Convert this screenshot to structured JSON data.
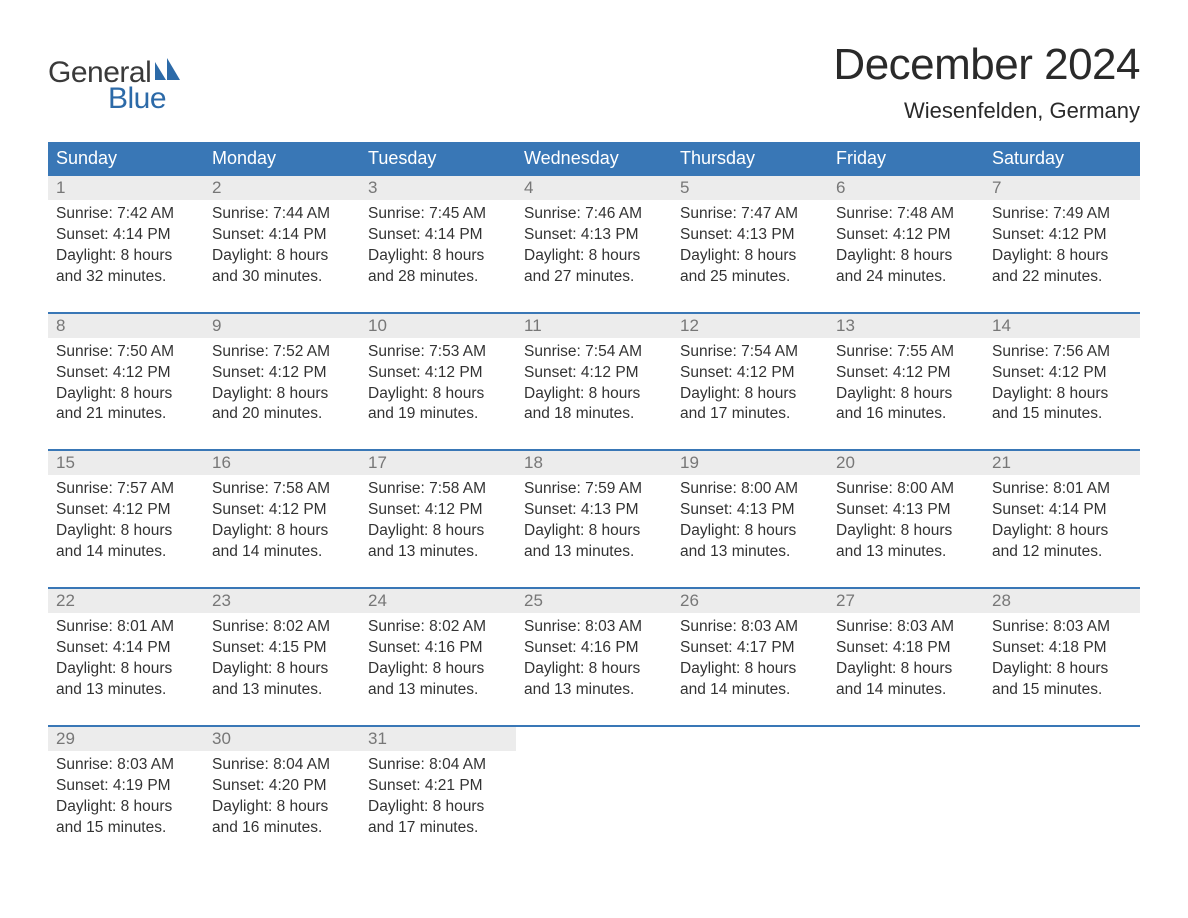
{
  "logo": {
    "primary": "General",
    "secondary": "Blue"
  },
  "title": "December 2024",
  "location": "Wiesenfelden, Germany",
  "colors": {
    "header_bg": "#3977b6",
    "header_text": "#ffffff",
    "day_num_bg": "#ececec",
    "day_num_text": "#777777",
    "text": "#333333",
    "page_bg": "#ffffff",
    "logo_secondary": "#2c6aa8",
    "separator": "#3977b6"
  },
  "layout": {
    "columns": 7,
    "weeks": 5,
    "header_fontsize": 18,
    "month_title_fontsize": 44,
    "location_fontsize": 22,
    "day_num_fontsize": 17,
    "cell_fontsize": 15.5
  },
  "weekdays": [
    "Sunday",
    "Monday",
    "Tuesday",
    "Wednesday",
    "Thursday",
    "Friday",
    "Saturday"
  ],
  "weeks": [
    [
      {
        "num": "1",
        "sunrise": "Sunrise: 7:42 AM",
        "sunset": "Sunset: 4:14 PM",
        "d1": "Daylight: 8 hours",
        "d2": "and 32 minutes."
      },
      {
        "num": "2",
        "sunrise": "Sunrise: 7:44 AM",
        "sunset": "Sunset: 4:14 PM",
        "d1": "Daylight: 8 hours",
        "d2": "and 30 minutes."
      },
      {
        "num": "3",
        "sunrise": "Sunrise: 7:45 AM",
        "sunset": "Sunset: 4:14 PM",
        "d1": "Daylight: 8 hours",
        "d2": "and 28 minutes."
      },
      {
        "num": "4",
        "sunrise": "Sunrise: 7:46 AM",
        "sunset": "Sunset: 4:13 PM",
        "d1": "Daylight: 8 hours",
        "d2": "and 27 minutes."
      },
      {
        "num": "5",
        "sunrise": "Sunrise: 7:47 AM",
        "sunset": "Sunset: 4:13 PM",
        "d1": "Daylight: 8 hours",
        "d2": "and 25 minutes."
      },
      {
        "num": "6",
        "sunrise": "Sunrise: 7:48 AM",
        "sunset": "Sunset: 4:12 PM",
        "d1": "Daylight: 8 hours",
        "d2": "and 24 minutes."
      },
      {
        "num": "7",
        "sunrise": "Sunrise: 7:49 AM",
        "sunset": "Sunset: 4:12 PM",
        "d1": "Daylight: 8 hours",
        "d2": "and 22 minutes."
      }
    ],
    [
      {
        "num": "8",
        "sunrise": "Sunrise: 7:50 AM",
        "sunset": "Sunset: 4:12 PM",
        "d1": "Daylight: 8 hours",
        "d2": "and 21 minutes."
      },
      {
        "num": "9",
        "sunrise": "Sunrise: 7:52 AM",
        "sunset": "Sunset: 4:12 PM",
        "d1": "Daylight: 8 hours",
        "d2": "and 20 minutes."
      },
      {
        "num": "10",
        "sunrise": "Sunrise: 7:53 AM",
        "sunset": "Sunset: 4:12 PM",
        "d1": "Daylight: 8 hours",
        "d2": "and 19 minutes."
      },
      {
        "num": "11",
        "sunrise": "Sunrise: 7:54 AM",
        "sunset": "Sunset: 4:12 PM",
        "d1": "Daylight: 8 hours",
        "d2": "and 18 minutes."
      },
      {
        "num": "12",
        "sunrise": "Sunrise: 7:54 AM",
        "sunset": "Sunset: 4:12 PM",
        "d1": "Daylight: 8 hours",
        "d2": "and 17 minutes."
      },
      {
        "num": "13",
        "sunrise": "Sunrise: 7:55 AM",
        "sunset": "Sunset: 4:12 PM",
        "d1": "Daylight: 8 hours",
        "d2": "and 16 minutes."
      },
      {
        "num": "14",
        "sunrise": "Sunrise: 7:56 AM",
        "sunset": "Sunset: 4:12 PM",
        "d1": "Daylight: 8 hours",
        "d2": "and 15 minutes."
      }
    ],
    [
      {
        "num": "15",
        "sunrise": "Sunrise: 7:57 AM",
        "sunset": "Sunset: 4:12 PM",
        "d1": "Daylight: 8 hours",
        "d2": "and 14 minutes."
      },
      {
        "num": "16",
        "sunrise": "Sunrise: 7:58 AM",
        "sunset": "Sunset: 4:12 PM",
        "d1": "Daylight: 8 hours",
        "d2": "and 14 minutes."
      },
      {
        "num": "17",
        "sunrise": "Sunrise: 7:58 AM",
        "sunset": "Sunset: 4:12 PM",
        "d1": "Daylight: 8 hours",
        "d2": "and 13 minutes."
      },
      {
        "num": "18",
        "sunrise": "Sunrise: 7:59 AM",
        "sunset": "Sunset: 4:13 PM",
        "d1": "Daylight: 8 hours",
        "d2": "and 13 minutes."
      },
      {
        "num": "19",
        "sunrise": "Sunrise: 8:00 AM",
        "sunset": "Sunset: 4:13 PM",
        "d1": "Daylight: 8 hours",
        "d2": "and 13 minutes."
      },
      {
        "num": "20",
        "sunrise": "Sunrise: 8:00 AM",
        "sunset": "Sunset: 4:13 PM",
        "d1": "Daylight: 8 hours",
        "d2": "and 13 minutes."
      },
      {
        "num": "21",
        "sunrise": "Sunrise: 8:01 AM",
        "sunset": "Sunset: 4:14 PM",
        "d1": "Daylight: 8 hours",
        "d2": "and 12 minutes."
      }
    ],
    [
      {
        "num": "22",
        "sunrise": "Sunrise: 8:01 AM",
        "sunset": "Sunset: 4:14 PM",
        "d1": "Daylight: 8 hours",
        "d2": "and 13 minutes."
      },
      {
        "num": "23",
        "sunrise": "Sunrise: 8:02 AM",
        "sunset": "Sunset: 4:15 PM",
        "d1": "Daylight: 8 hours",
        "d2": "and 13 minutes."
      },
      {
        "num": "24",
        "sunrise": "Sunrise: 8:02 AM",
        "sunset": "Sunset: 4:16 PM",
        "d1": "Daylight: 8 hours",
        "d2": "and 13 minutes."
      },
      {
        "num": "25",
        "sunrise": "Sunrise: 8:03 AM",
        "sunset": "Sunset: 4:16 PM",
        "d1": "Daylight: 8 hours",
        "d2": "and 13 minutes."
      },
      {
        "num": "26",
        "sunrise": "Sunrise: 8:03 AM",
        "sunset": "Sunset: 4:17 PM",
        "d1": "Daylight: 8 hours",
        "d2": "and 14 minutes."
      },
      {
        "num": "27",
        "sunrise": "Sunrise: 8:03 AM",
        "sunset": "Sunset: 4:18 PM",
        "d1": "Daylight: 8 hours",
        "d2": "and 14 minutes."
      },
      {
        "num": "28",
        "sunrise": "Sunrise: 8:03 AM",
        "sunset": "Sunset: 4:18 PM",
        "d1": "Daylight: 8 hours",
        "d2": "and 15 minutes."
      }
    ],
    [
      {
        "num": "29",
        "sunrise": "Sunrise: 8:03 AM",
        "sunset": "Sunset: 4:19 PM",
        "d1": "Daylight: 8 hours",
        "d2": "and 15 minutes."
      },
      {
        "num": "30",
        "sunrise": "Sunrise: 8:04 AM",
        "sunset": "Sunset: 4:20 PM",
        "d1": "Daylight: 8 hours",
        "d2": "and 16 minutes."
      },
      {
        "num": "31",
        "sunrise": "Sunrise: 8:04 AM",
        "sunset": "Sunset: 4:21 PM",
        "d1": "Daylight: 8 hours",
        "d2": "and 17 minutes."
      },
      {
        "empty": true
      },
      {
        "empty": true
      },
      {
        "empty": true
      },
      {
        "empty": true
      }
    ]
  ]
}
